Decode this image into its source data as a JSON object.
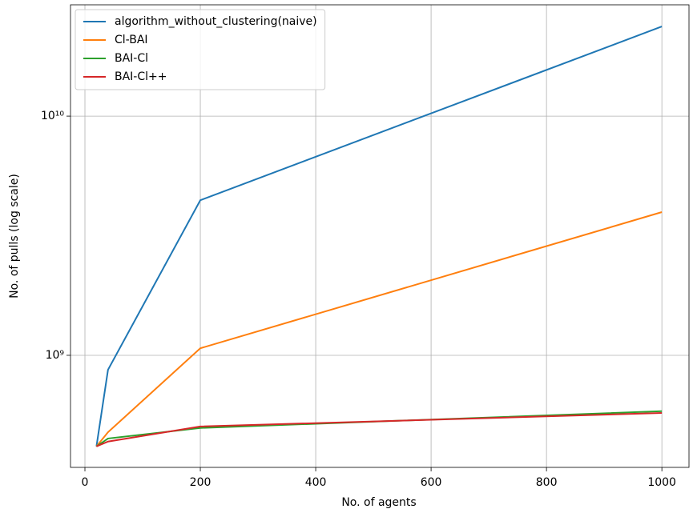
{
  "chart_data": {
    "type": "line",
    "xlabel": "No. of agents",
    "ylabel": "No. of pulls (log scale)",
    "x": [
      20,
      40,
      200,
      1000
    ],
    "series": [
      {
        "name": "algorithm_without_clustering(naive)",
        "color": "#1f77b4",
        "values": [
          416000000,
          870000000,
          4450000000,
          23700000000
        ]
      },
      {
        "name": "Cl-BAI",
        "color": "#ff7f0e",
        "values": [
          416000000,
          477000000,
          1070000000,
          3970000000
        ]
      },
      {
        "name": "BAI-Cl",
        "color": "#2ca02c",
        "values": [
          416000000,
          449000000,
          497000000,
          584000000
        ]
      },
      {
        "name": "BAI-Cl++",
        "color": "#d62728",
        "values": [
          416000000,
          436000000,
          504000000,
          574000000
        ]
      }
    ],
    "xlim": [
      -25,
      1047
    ],
    "xticks": [
      0,
      200,
      400,
      600,
      800,
      1000
    ],
    "ylim": [
      340000000,
      29200000000
    ],
    "yticks": [
      {
        "value": 1000000000,
        "label": "10⁹"
      },
      {
        "value": 10000000000,
        "label": "10¹⁰"
      }
    ],
    "log_y": true,
    "grid": true,
    "legend": "upper-left"
  }
}
